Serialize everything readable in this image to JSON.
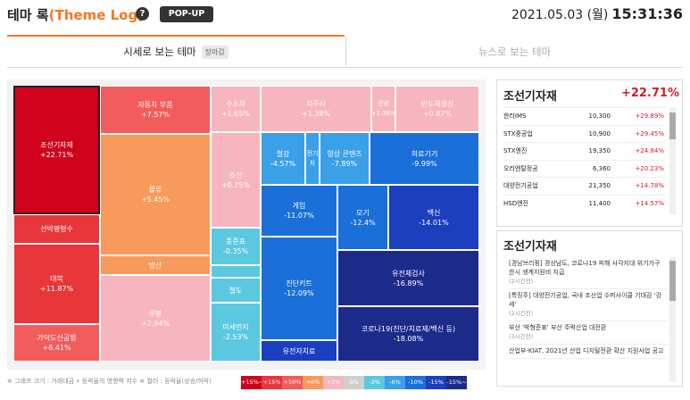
{
  "header": {
    "title": "테마 록",
    "title_accent": "(Theme Log)",
    "help_icon": "?",
    "popup_label": "POP-UP",
    "date": "2021.05.03 (월)",
    "time": "15:31:36"
  },
  "tabs": {
    "tab1": "시세로 보는 테마",
    "tab1_tag": "장마감",
    "tab2": "뉴스로 보는 테마"
  },
  "treemap": [
    {
      "name": "조선기자재",
      "rate": "+22.71%"
    },
    {
      "name": "선박평형수",
      "rate": ""
    },
    {
      "name": "대북",
      "rate": "+11.87%"
    },
    {
      "name": "가덕도신공항",
      "rate": "+8.41%"
    },
    {
      "name": "자동차 부품",
      "rate": "+7.57%"
    },
    {
      "name": "물류",
      "rate": "+5.45%"
    },
    {
      "name": "방산",
      "rate": "+5.39%"
    },
    {
      "name": "쿠팡",
      "rate": "+2.94%"
    },
    {
      "name": "수소차",
      "rate": "+1.65%"
    },
    {
      "name": "지주사",
      "rate": "+1.38%"
    },
    {
      "name": "관광",
      "rate": "+1.38%"
    },
    {
      "name": "반도체생산",
      "rate": "+0.87%"
    },
    {
      "name": "조선",
      "rate": "+0.75%"
    },
    {
      "name": "철강",
      "rate": "-4.57%"
    },
    {
      "name": "전기차",
      "rate": ""
    },
    {
      "name": "영상 콘텐츠",
      "rate": "-7.89%"
    },
    {
      "name": "의료기기",
      "rate": "-9.99%"
    },
    {
      "name": "게임",
      "rate": "-11.07%"
    },
    {
      "name": "모기",
      "rate": "-12.4%"
    },
    {
      "name": "백신",
      "rate": "-14.01%"
    },
    {
      "name": "풍준표",
      "rate": "-0.35%"
    },
    {
      "name": "철도",
      "rate": ""
    },
    {
      "name": "미세먼지",
      "rate": "-2.53%"
    },
    {
      "name": "진단키트",
      "rate": "-12.09%"
    },
    {
      "name": "유전체검사",
      "rate": "-16.89%"
    },
    {
      "name": "코로나19(진단/치료제/백신 등)",
      "rate": "-18.08%"
    },
    {
      "name": "유전자치료",
      "rate": ""
    }
  ],
  "footnote": "※ 그래프 크기 : 거래대금 • 등락율의 영향력 지수 ※ 컬러 : 등락율(상승/하락)",
  "legend": [
    {
      "label": "+15%~",
      "color": "#d0021b"
    },
    {
      "label": "+15%",
      "color": "#e8363a"
    },
    {
      "label": "+10%",
      "color": "#f25c5c"
    },
    {
      "label": "+6%",
      "color": "#f79a5c"
    },
    {
      "label": "+3%",
      "color": "#f7b5c0"
    },
    {
      "label": "0%",
      "color": "#cfcfcf"
    },
    {
      "label": "-3%",
      "color": "#5bc8e0"
    },
    {
      "label": "-6%",
      "color": "#3aa0e8"
    },
    {
      "label": "-10%",
      "color": "#1a6fd8"
    },
    {
      "label": "-15%",
      "color": "#1a3fbf"
    },
    {
      "label": "-15%~",
      "color": "#1c2a8a"
    }
  ],
  "right_panel": {
    "title": "조선기자재",
    "rate": "+22.71%",
    "stocks": [
      {
        "name": "한라IMS",
        "price": "10,300",
        "rate": "+29.89%"
      },
      {
        "name": "STX중공업",
        "price": "10,900",
        "rate": "+29.45%"
      },
      {
        "name": "STX엔진",
        "price": "19,350",
        "rate": "+24.84%"
      },
      {
        "name": "오리엔탈정공",
        "price": "6,360",
        "rate": "+20.23%"
      },
      {
        "name": "대양전기공업",
        "price": "21,350",
        "rate": "+14.78%"
      },
      {
        "name": "HSD엔진",
        "price": "11,400",
        "rate": "+14.57%"
      }
    ]
  },
  "news_panel": {
    "title": "조선기자재",
    "items": [
      {
        "text": "[경남브리핑] 경상남도, 코로나19 피해 사각지대 위기가구 한시 생계지원비 지급",
        "ago": "(2시간전)"
      },
      {
        "text": "[특징주] 대양전기공업, 국내 조선업 수퍼사이클 기대감 '강세'",
        "ago": "(2시간전)"
      },
      {
        "text": "부산 '박형준표' 부산 주력산업 대전환",
        "ago": "(3시간전)"
      },
      {
        "text": "산업부-KIAT, 2021년 산업 디지털전환 확산 지원사업 공고",
        "ago": ""
      }
    ]
  }
}
